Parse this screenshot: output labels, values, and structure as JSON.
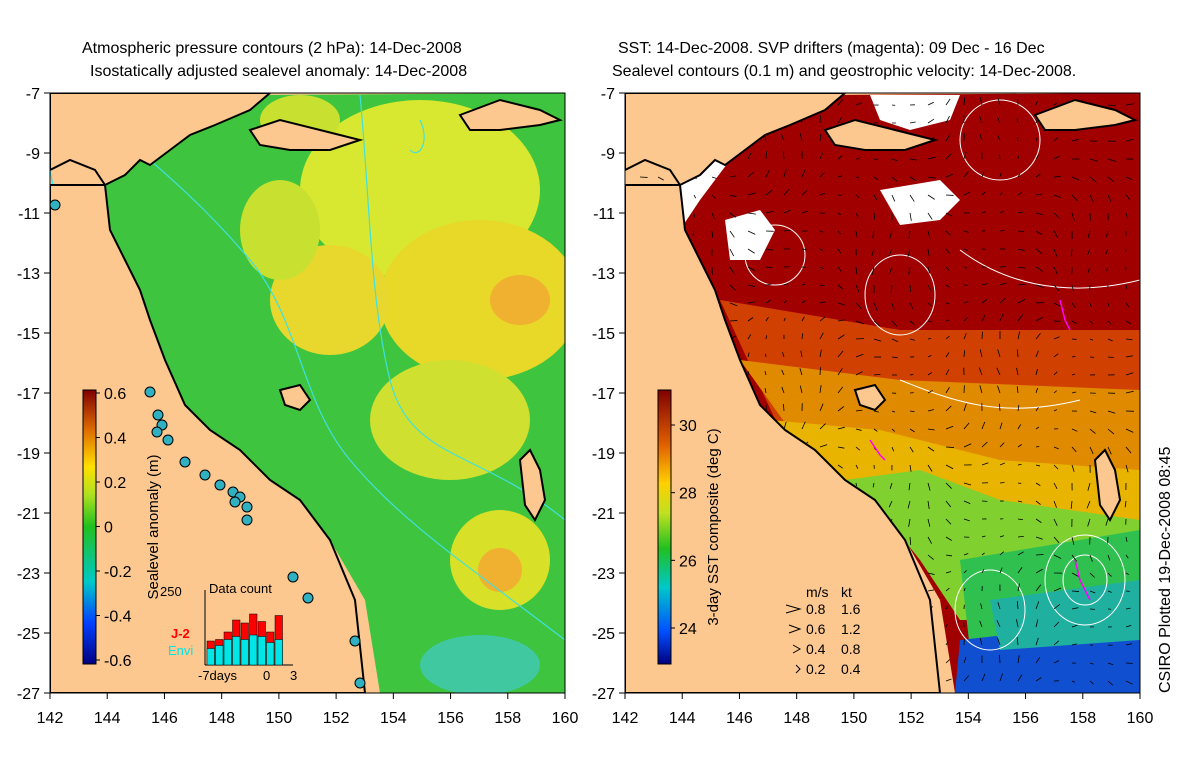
{
  "left_panel": {
    "title_line1": "Atmospheric pressure contours (2 hPa): 14-Dec-2008",
    "title_line2": "Isostatically adjusted sealevel anomaly: 14-Dec-2008",
    "y_ticks": [
      "-7",
      "-9",
      "-11",
      "-13",
      "-15",
      "-17",
      "-19",
      "-21",
      "-23",
      "-25",
      "-27"
    ],
    "x_ticks": [
      "142",
      "144",
      "146",
      "148",
      "150",
      "152",
      "154",
      "156",
      "158",
      "160"
    ],
    "colorbar": {
      "label": "Sealevel anomaly (m)",
      "ticks": [
        "0.6",
        "0.4",
        "0.2",
        "0",
        "-0.2",
        "-0.4",
        "-0.6"
      ]
    },
    "inset": {
      "title": "Data count",
      "y_max": "250",
      "x_labels": [
        "-7days",
        "0",
        "3"
      ],
      "legend": [
        {
          "name": "J-2",
          "color": "#ff0000"
        },
        {
          "name": "Envi",
          "color": "#00e5e5"
        }
      ],
      "j2_counts": [
        80,
        85,
        110,
        150,
        140,
        170,
        145,
        110,
        165
      ],
      "envi_counts": [
        55,
        65,
        85,
        95,
        85,
        100,
        95,
        75,
        85
      ]
    }
  },
  "right_panel": {
    "title_line1": "SST: 14-Dec-2008. SVP drifters (magenta): 09 Dec - 16 Dec",
    "title_line2": "Sealevel contours (0.1 m) and geostrophic velocity: 14-Dec-2008.",
    "y_ticks": [
      "-7",
      "-9",
      "-11",
      "-13",
      "-15",
      "-17",
      "-19",
      "-21",
      "-23",
      "-25",
      "-27"
    ],
    "x_ticks": [
      "142",
      "144",
      "146",
      "148",
      "150",
      "152",
      "154",
      "156",
      "158",
      "160"
    ],
    "colorbar": {
      "label": "3-day SST composite (deg C)",
      "ticks": [
        "30",
        "28",
        "26",
        "24"
      ]
    },
    "velocity_legend": {
      "header_ms": "m/s",
      "header_kt": "kt",
      "rows": [
        {
          "ms": "0.8",
          "kt": "1.6"
        },
        {
          "ms": "0.6",
          "kt": "1.2"
        },
        {
          "ms": "0.4",
          "kt": "0.8"
        },
        {
          "ms": "0.2",
          "kt": "0.4"
        }
      ]
    }
  },
  "credit": "CSIRO Plotted 19-Dec-2008 08:45",
  "colors": {
    "land": "#fcc890",
    "sea_green": "#3ec43e",
    "sea_yellow": "#d8e830",
    "sst_dark_red": "#a00000",
    "sst_orange": "#e08a00",
    "sst_blue": "#1050d0"
  }
}
